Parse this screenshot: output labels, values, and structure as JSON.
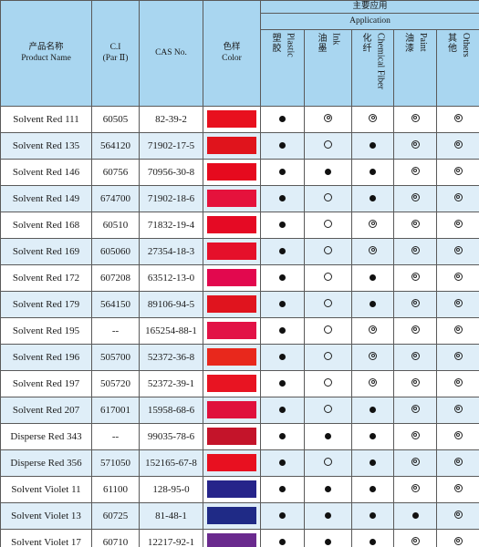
{
  "header": {
    "name_cn": "产品名称",
    "name_en": "Product Name",
    "ci_line1": "C.I",
    "ci_line2": "(Par Ⅱ)",
    "cas": "CAS No.",
    "color_cn": "色样",
    "color_en": "Color",
    "app_cn": "主要应用",
    "app_en": "Application",
    "plastic_cn": "塑胶",
    "plastic_en": "Plastic",
    "ink_cn": "油墨",
    "ink_en": "Ink",
    "fiber_cn": "化纤",
    "fiber_en": "Chemical Fiber",
    "paint_cn": "油漆",
    "paint_en": "Paint",
    "others_cn": "其他",
    "others_en": "Others"
  },
  "legend_marks": {
    "filled": "●",
    "open": "○",
    "double": "◎"
  },
  "rows": [
    {
      "name": "Solvent Red 111",
      "ci": "60505",
      "cas": "82-39-2",
      "color": "#e8101e",
      "plastic": "filled",
      "ink": "double",
      "fiber": "double",
      "paint": "double",
      "others": "double"
    },
    {
      "name": "Solvent Red 135",
      "ci": "564120",
      "cas": "71902-17-5",
      "color": "#e0141c",
      "plastic": "filled",
      "ink": "open",
      "fiber": "filled",
      "paint": "double",
      "others": "double"
    },
    {
      "name": "Solvent Red 146",
      "ci": "60756",
      "cas": "70956-30-8",
      "color": "#e60a1e",
      "plastic": "filled",
      "ink": "filled",
      "fiber": "filled",
      "paint": "double",
      "others": "double"
    },
    {
      "name": "Solvent Red 149",
      "ci": "674700",
      "cas": "71902-18-6",
      "color": "#e5123c",
      "plastic": "filled",
      "ink": "open",
      "fiber": "filled",
      "paint": "double",
      "others": "double"
    },
    {
      "name": "Solvent Red 168",
      "ci": "60510",
      "cas": "71832-19-4",
      "color": "#e50a24",
      "plastic": "filled",
      "ink": "open",
      "fiber": "double",
      "paint": "double",
      "others": "double"
    },
    {
      "name": "Solvent Red 169",
      "ci": "605060",
      "cas": "27354-18-3",
      "color": "#e5102a",
      "plastic": "filled",
      "ink": "open",
      "fiber": "double",
      "paint": "double",
      "others": "double"
    },
    {
      "name": "Solvent Red 172",
      "ci": "607208",
      "cas": "63512-13-0",
      "color": "#e2084e",
      "plastic": "filled",
      "ink": "open",
      "fiber": "filled",
      "paint": "double",
      "others": "double"
    },
    {
      "name": "Solvent Red 179",
      "ci": "564150",
      "cas": "89106-94-5",
      "color": "#e0141e",
      "plastic": "filled",
      "ink": "open",
      "fiber": "filled",
      "paint": "double",
      "others": "double"
    },
    {
      "name": "Solvent Red 195",
      "ci": "--",
      "cas": "165254-88-1",
      "color": "#e21246",
      "plastic": "filled",
      "ink": "open",
      "fiber": "double",
      "paint": "double",
      "others": "double"
    },
    {
      "name": "Solvent Red 196",
      "ci": "505700",
      "cas": "52372-36-8",
      "color": "#e8281c",
      "plastic": "filled",
      "ink": "open",
      "fiber": "double",
      "paint": "double",
      "others": "double"
    },
    {
      "name": "Solvent Red 197",
      "ci": "505720",
      "cas": "52372-39-1",
      "color": "#e81422",
      "plastic": "filled",
      "ink": "open",
      "fiber": "double",
      "paint": "double",
      "others": "double"
    },
    {
      "name": "Solvent Red 207",
      "ci": "617001",
      "cas": "15958-68-6",
      "color": "#e0103c",
      "plastic": "filled",
      "ink": "open",
      "fiber": "filled",
      "paint": "double",
      "others": "double"
    },
    {
      "name": "Disperse Red 343",
      "ci": "--",
      "cas": "99035-78-6",
      "color": "#c4142a",
      "plastic": "filled",
      "ink": "filled",
      "fiber": "filled",
      "paint": "double",
      "others": "double"
    },
    {
      "name": "Disperse Red 356",
      "ci": "571050",
      "cas": "152165-67-8",
      "color": "#e81020",
      "plastic": "filled",
      "ink": "open",
      "fiber": "filled",
      "paint": "double",
      "others": "double"
    },
    {
      "name": "Solvent Violet 11",
      "ci": "61100",
      "cas": "128-95-0",
      "color": "#26248a",
      "plastic": "filled",
      "ink": "filled",
      "fiber": "filled",
      "paint": "double",
      "others": "double"
    },
    {
      "name": "Solvent Violet 13",
      "ci": "60725",
      "cas": "81-48-1",
      "color": "#1f2a86",
      "plastic": "filled",
      "ink": "filled",
      "fiber": "filled",
      "paint": "filled",
      "others": "double"
    },
    {
      "name": "Solvent Violet 17",
      "ci": "60710",
      "cas": "12217-92-1",
      "color": "#6a2a8e",
      "plastic": "filled",
      "ink": "filled",
      "fiber": "filled",
      "paint": "double",
      "others": "double"
    }
  ]
}
